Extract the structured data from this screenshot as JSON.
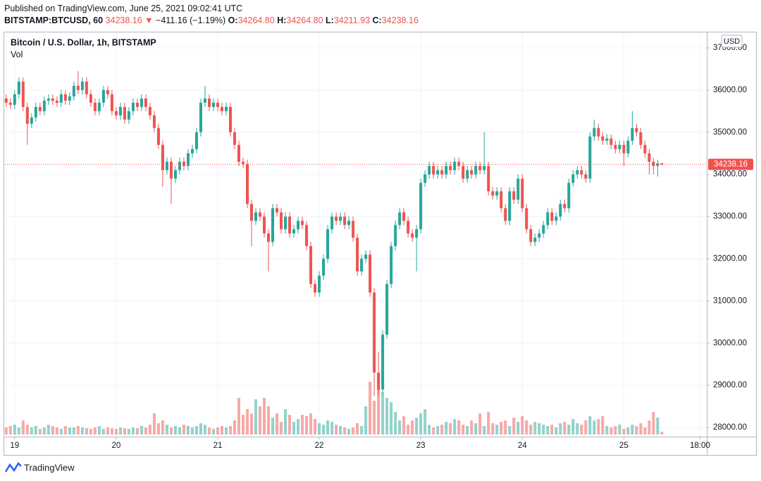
{
  "header": {
    "published": "Published on TradingView.com, June 25, 2021 09:02:41 UTC",
    "symbol": "BITSTAMP:BTCUSD, 60",
    "arrow": "▼",
    "change": "−411.16 (−1.19%)",
    "o_label": "O:",
    "open": "34264.80",
    "h_label": "H:",
    "high": "34264.80",
    "l_label": "L:",
    "low": "34211.93",
    "c_label": "C:",
    "close": "34238.16"
  },
  "footer": {
    "brand": "TradingView"
  },
  "chart_data": {
    "type": "candlestick",
    "title": "Bitcoin / U.S. Dollar, 1h, BITSTAMP",
    "volume_title": "Vol",
    "currency": "USD",
    "last_price": 34238.16,
    "up_color": "#26a69a",
    "down_color": "#ef5350",
    "volume_opacity": 0.5,
    "grid": true,
    "xlim": [
      -2.3,
      163.6
    ],
    "ylim": [
      27783,
      37367
    ],
    "volume_lim": [
      0,
      100
    ],
    "xticks": [
      {
        "value": 0,
        "label": "19"
      },
      {
        "value": 24,
        "label": "20"
      },
      {
        "value": 48,
        "label": "21"
      },
      {
        "value": 72,
        "label": "22"
      },
      {
        "value": 96,
        "label": "23"
      },
      {
        "value": 120,
        "label": "24"
      },
      {
        "value": 144,
        "label": "25"
      },
      {
        "value": 162,
        "label": "18:00"
      }
    ],
    "yticks": [
      {
        "value": 28000,
        "label": "28000.00"
      },
      {
        "value": 29000,
        "label": "29000.00"
      },
      {
        "value": 30000,
        "label": "30000.00"
      },
      {
        "value": 31000,
        "label": "31000.00"
      },
      {
        "value": 32000,
        "label": "32000.00"
      },
      {
        "value": 33000,
        "label": "33000.00"
      },
      {
        "value": 34000,
        "label": "34000.00"
      },
      {
        "value": 35000,
        "label": "35000.00"
      },
      {
        "value": 36000,
        "label": "36000.00"
      },
      {
        "value": 37000,
        "label": "37000.00"
      }
    ],
    "x": [
      -2,
      -1,
      0,
      1,
      2,
      3,
      4,
      5,
      6,
      7,
      8,
      9,
      10,
      11,
      12,
      13,
      14,
      15,
      16,
      17,
      18,
      19,
      20,
      21,
      22,
      23,
      24,
      25,
      26,
      27,
      28,
      29,
      30,
      31,
      32,
      33,
      34,
      35,
      36,
      37,
      38,
      39,
      40,
      41,
      42,
      43,
      44,
      45,
      46,
      47,
      48,
      49,
      50,
      51,
      52,
      53,
      54,
      55,
      56,
      57,
      58,
      59,
      60,
      61,
      62,
      63,
      64,
      65,
      66,
      67,
      68,
      69,
      70,
      71,
      72,
      73,
      74,
      75,
      76,
      77,
      78,
      79,
      80,
      81,
      82,
      83,
      84,
      85,
      86,
      87,
      88,
      89,
      90,
      91,
      92,
      93,
      94,
      95,
      96,
      97,
      98,
      99,
      100,
      101,
      102,
      103,
      104,
      105,
      106,
      107,
      108,
      109,
      110,
      111,
      112,
      113,
      114,
      115,
      116,
      117,
      118,
      119,
      120,
      121,
      122,
      123,
      124,
      125,
      126,
      127,
      128,
      129,
      130,
      131,
      132,
      133,
      134,
      135,
      136,
      137,
      138,
      139,
      140,
      141,
      142,
      143,
      144,
      145,
      146,
      147,
      148,
      149,
      150,
      151,
      152,
      153
    ],
    "ohlc": [
      [
        35800,
        35900,
        35600,
        35700
      ],
      [
        35700,
        35800,
        35550,
        35650
      ],
      [
        35650,
        36000,
        35550,
        35900
      ],
      [
        35900,
        36300,
        35800,
        36200
      ],
      [
        36200,
        36300,
        35500,
        35600
      ],
      [
        35600,
        35700,
        34700,
        35200
      ],
      [
        35200,
        35450,
        35100,
        35350
      ],
      [
        35350,
        35700,
        35250,
        35600
      ],
      [
        35600,
        35700,
        35400,
        35500
      ],
      [
        35500,
        35850,
        35400,
        35750
      ],
      [
        35750,
        35900,
        35650,
        35800
      ],
      [
        35800,
        35900,
        35650,
        35750
      ],
      [
        35750,
        35850,
        35600,
        35700
      ],
      [
        35700,
        36000,
        35600,
        35900
      ],
      [
        35900,
        36000,
        35650,
        35750
      ],
      [
        35750,
        35950,
        35650,
        35850
      ],
      [
        35850,
        36200,
        35750,
        36100
      ],
      [
        36100,
        36450,
        35900,
        36000
      ],
      [
        36000,
        36300,
        35900,
        36200
      ],
      [
        36200,
        36300,
        35800,
        35900
      ],
      [
        35900,
        36000,
        35600,
        35700
      ],
      [
        35700,
        35800,
        35400,
        35500
      ],
      [
        35500,
        35800,
        35400,
        35700
      ],
      [
        35700,
        36100,
        35600,
        36000
      ],
      [
        36000,
        36100,
        35800,
        35900
      ],
      [
        35900,
        36000,
        35400,
        35500
      ],
      [
        35500,
        35600,
        35300,
        35400
      ],
      [
        35400,
        35700,
        35300,
        35600
      ],
      [
        35600,
        35700,
        35200,
        35300
      ],
      [
        35300,
        35600,
        35200,
        35500
      ],
      [
        35500,
        35800,
        35400,
        35700
      ],
      [
        35700,
        35800,
        35500,
        35600
      ],
      [
        35600,
        35900,
        35500,
        35800
      ],
      [
        35800,
        35900,
        35500,
        35600
      ],
      [
        35600,
        35700,
        35300,
        35400
      ],
      [
        35400,
        35500,
        35000,
        35100
      ],
      [
        35100,
        35200,
        34600,
        34700
      ],
      [
        34700,
        34800,
        33700,
        34100
      ],
      [
        34100,
        34400,
        34000,
        34300
      ],
      [
        34300,
        34400,
        33300,
        33900
      ],
      [
        33900,
        34200,
        33800,
        34100
      ],
      [
        34100,
        34400,
        34000,
        34300
      ],
      [
        34300,
        34400,
        34100,
        34200
      ],
      [
        34200,
        34600,
        34100,
        34500
      ],
      [
        34500,
        34700,
        34400,
        34600
      ],
      [
        34600,
        35100,
        34500,
        35000
      ],
      [
        35000,
        35800,
        34900,
        35700
      ],
      [
        35700,
        36100,
        35600,
        35800
      ],
      [
        35800,
        35900,
        35500,
        35600
      ],
      [
        35600,
        35800,
        35500,
        35700
      ],
      [
        35700,
        35800,
        35500,
        35600
      ],
      [
        35600,
        35700,
        35400,
        35500
      ],
      [
        35500,
        35700,
        35400,
        35600
      ],
      [
        35600,
        35700,
        34900,
        35000
      ],
      [
        35000,
        35100,
        34600,
        34700
      ],
      [
        34700,
        34800,
        34200,
        34300
      ],
      [
        34300,
        34400,
        34150,
        34250
      ],
      [
        34250,
        34350,
        33200,
        33300
      ],
      [
        33300,
        33400,
        32300,
        32900
      ],
      [
        32900,
        33200,
        32800,
        33100
      ],
      [
        33100,
        33200,
        32900,
        33000
      ],
      [
        33000,
        33100,
        32500,
        32600
      ],
      [
        32600,
        32700,
        31700,
        32400
      ],
      [
        32400,
        33300,
        32300,
        33200
      ],
      [
        33200,
        33300,
        33000,
        33100
      ],
      [
        33100,
        33200,
        32600,
        32700
      ],
      [
        32700,
        33100,
        32600,
        33000
      ],
      [
        33000,
        33100,
        32500,
        32600
      ],
      [
        32600,
        32800,
        32500,
        32700
      ],
      [
        32700,
        33000,
        32600,
        32900
      ],
      [
        32900,
        33000,
        32700,
        32800
      ],
      [
        32800,
        32900,
        32200,
        32300
      ],
      [
        32300,
        32400,
        31300,
        31400
      ],
      [
        31400,
        31500,
        31100,
        31200
      ],
      [
        31200,
        31700,
        31100,
        31600
      ],
      [
        31600,
        32100,
        31500,
        32000
      ],
      [
        32000,
        32800,
        31900,
        32700
      ],
      [
        32700,
        33100,
        32600,
        33000
      ],
      [
        33000,
        33100,
        32800,
        32900
      ],
      [
        32900,
        33100,
        32800,
        33000
      ],
      [
        33000,
        33100,
        32700,
        32800
      ],
      [
        32800,
        33000,
        32700,
        32900
      ],
      [
        32900,
        33000,
        32400,
        32500
      ],
      [
        32500,
        32600,
        31600,
        31700
      ],
      [
        31700,
        32100,
        31600,
        32000
      ],
      [
        32000,
        32200,
        31900,
        32100
      ],
      [
        32100,
        32200,
        31100,
        31200
      ],
      [
        31200,
        31300,
        28750,
        29300
      ],
      [
        29300,
        29800,
        28750,
        28900
      ],
      [
        28900,
        30300,
        28800,
        30200
      ],
      [
        30200,
        31500,
        30100,
        31400
      ],
      [
        31400,
        32400,
        31300,
        32300
      ],
      [
        32300,
        32900,
        32200,
        32800
      ],
      [
        32800,
        33200,
        32700,
        33100
      ],
      [
        33100,
        33200,
        32800,
        32900
      ],
      [
        32900,
        33000,
        32500,
        32600
      ],
      [
        32600,
        32700,
        32400,
        32500
      ],
      [
        32500,
        32800,
        31700,
        32700
      ],
      [
        32700,
        33900,
        32600,
        33800
      ],
      [
        33800,
        34100,
        33700,
        34000
      ],
      [
        34000,
        34300,
        33900,
        34200
      ],
      [
        34200,
        34300,
        33900,
        34000
      ],
      [
        34000,
        34200,
        33900,
        34100
      ],
      [
        34100,
        34200,
        33900,
        34000
      ],
      [
        34000,
        34300,
        33900,
        34200
      ],
      [
        34200,
        34300,
        34000,
        34100
      ],
      [
        34100,
        34400,
        34000,
        34300
      ],
      [
        34300,
        34400,
        34100,
        34200
      ],
      [
        34200,
        34300,
        33800,
        33900
      ],
      [
        33900,
        34200,
        33800,
        34100
      ],
      [
        34100,
        34200,
        33900,
        34000
      ],
      [
        34000,
        34300,
        33900,
        34200
      ],
      [
        34200,
        34300,
        34000,
        34100
      ],
      [
        34100,
        35000,
        34000,
        34200
      ],
      [
        34200,
        34300,
        33500,
        33600
      ],
      [
        33600,
        33700,
        33400,
        33500
      ],
      [
        33500,
        33700,
        33400,
        33600
      ],
      [
        33600,
        33700,
        33100,
        33200
      ],
      [
        33200,
        33300,
        32800,
        32900
      ],
      [
        32900,
        33700,
        32800,
        33600
      ],
      [
        33600,
        33700,
        33300,
        33400
      ],
      [
        33400,
        34000,
        33300,
        33900
      ],
      [
        33900,
        34000,
        33100,
        33200
      ],
      [
        33200,
        33300,
        32600,
        32700
      ],
      [
        32700,
        32800,
        32300,
        32400
      ],
      [
        32400,
        32600,
        32300,
        32500
      ],
      [
        32500,
        32700,
        32400,
        32600
      ],
      [
        32600,
        32900,
        32500,
        32800
      ],
      [
        32800,
        33200,
        32700,
        33100
      ],
      [
        33100,
        33200,
        32800,
        32900
      ],
      [
        32900,
        33100,
        32800,
        33000
      ],
      [
        33000,
        33400,
        32900,
        33300
      ],
      [
        33300,
        33400,
        33100,
        33200
      ],
      [
        33200,
        33900,
        33100,
        33800
      ],
      [
        33800,
        34100,
        33700,
        34000
      ],
      [
        34000,
        34200,
        33900,
        34100
      ],
      [
        34100,
        34200,
        33900,
        34000
      ],
      [
        34000,
        34100,
        33800,
        33900
      ],
      [
        33900,
        35000,
        33800,
        34900
      ],
      [
        34900,
        35300,
        34800,
        35100
      ],
      [
        35100,
        35200,
        34800,
        34900
      ],
      [
        34900,
        35000,
        34700,
        34800
      ],
      [
        34800,
        34950,
        34700,
        34850
      ],
      [
        34850,
        34950,
        34600,
        34700
      ],
      [
        34700,
        34800,
        34500,
        34600
      ],
      [
        34600,
        34800,
        34500,
        34700
      ],
      [
        34700,
        34800,
        34200,
        34500
      ],
      [
        34500,
        34900,
        34400,
        34800
      ],
      [
        34800,
        35500,
        34700,
        35100
      ],
      [
        35100,
        35200,
        34900,
        35000
      ],
      [
        35000,
        35100,
        34600,
        34700
      ],
      [
        34700,
        34800,
        34400,
        34500
      ],
      [
        34500,
        34600,
        34000,
        34300
      ],
      [
        34300,
        34400,
        34000,
        34200
      ],
      [
        34200,
        34350,
        33950,
        34264.8
      ],
      [
        34264.8,
        34264.8,
        34211.93,
        34238.16
      ]
    ],
    "volume": [
      10,
      12,
      14,
      10,
      20,
      14,
      10,
      12,
      8,
      10,
      14,
      12,
      10,
      8,
      12,
      10,
      10,
      12,
      10,
      9,
      8,
      10,
      12,
      8,
      10,
      9,
      8,
      10,
      9,
      8,
      10,
      9,
      12,
      10,
      14,
      30,
      16,
      20,
      14,
      10,
      12,
      10,
      14,
      12,
      10,
      12,
      16,
      14,
      10,
      8,
      10,
      12,
      10,
      12,
      20,
      52,
      28,
      36,
      30,
      50,
      40,
      52,
      40,
      24,
      30,
      18,
      36,
      28,
      18,
      22,
      28,
      26,
      30,
      22,
      16,
      14,
      20,
      18,
      14,
      12,
      10,
      8,
      10,
      16,
      12,
      40,
      75,
      48,
      66,
      60,
      52,
      46,
      32,
      20,
      26,
      14,
      20,
      24,
      30,
      36,
      14,
      10,
      12,
      14,
      18,
      16,
      22,
      20,
      14,
      12,
      20,
      16,
      30,
      12,
      32,
      16,
      14,
      18,
      20,
      12,
      24,
      18,
      26,
      20,
      14,
      18,
      16,
      14,
      12,
      14,
      10,
      16,
      18,
      14,
      22,
      16,
      14,
      20,
      26,
      20,
      22,
      26,
      12,
      10,
      12,
      14,
      8,
      10,
      14,
      12,
      16,
      10,
      20,
      32,
      24,
      4
    ]
  }
}
